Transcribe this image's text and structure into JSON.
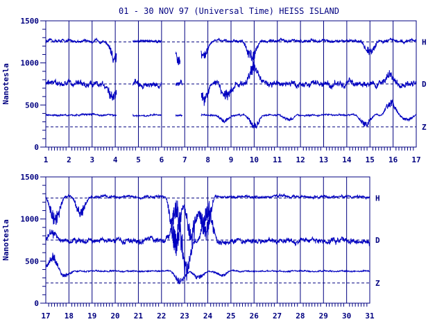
{
  "title": "01 - 30 NOV 97 (Universal Time) HEISS ISLAND",
  "colors": {
    "ink": "#000080",
    "trace": "#0000c0",
    "background": "#ffffff"
  },
  "chart_data": [
    {
      "type": "line",
      "ylabel": "Nanotesla",
      "ylim": [
        0,
        1500
      ],
      "yticks": [
        0,
        500,
        1000,
        1500
      ],
      "xlim": [
        1,
        17
      ],
      "xticks": [
        "1",
        "2",
        "3",
        "4",
        "5",
        "6",
        "7",
        "8",
        "9",
        "10",
        "11",
        "12",
        "13",
        "14",
        "15",
        "16",
        "17"
      ],
      "baselines": [
        {
          "component": "H",
          "value": 1250
        },
        {
          "component": "D",
          "value": 750
        },
        {
          "component": "Z",
          "value": 240
        }
      ],
      "series": [
        {
          "name": "H",
          "base": 1260,
          "noise": 22,
          "gaps": [
            [
              4.05,
              4.75
            ],
            [
              6.0,
              6.6
            ],
            [
              6.8,
              7.7
            ]
          ],
          "dips": [
            [
              4.0,
              250
            ],
            [
              6.8,
              280
            ],
            [
              7.8,
              180
            ],
            [
              9.9,
              200
            ],
            [
              15.0,
              140
            ]
          ]
        },
        {
          "name": "D",
          "base": 750,
          "noise": 45,
          "gaps": [
            [
              4.05,
              4.75
            ],
            [
              6.0,
              6.6
            ],
            [
              6.9,
              7.7
            ]
          ],
          "dips": [
            [
              3.9,
              180
            ],
            [
              7.8,
              200
            ],
            [
              8.8,
              150
            ],
            [
              10.0,
              -200
            ],
            [
              15.8,
              -120
            ]
          ]
        },
        {
          "name": "Z",
          "base": 380,
          "noise": 12,
          "gaps": [
            [
              4.05,
              4.75
            ],
            [
              6.0,
              6.6
            ],
            [
              6.9,
              7.7
            ]
          ],
          "dips": [
            [
              2.9,
              -10
            ],
            [
              8.7,
              70
            ],
            [
              10.0,
              150
            ],
            [
              11.5,
              60
            ],
            [
              14.8,
              120
            ],
            [
              15.9,
              -150
            ],
            [
              16.6,
              60
            ]
          ]
        }
      ]
    },
    {
      "type": "line",
      "ylabel": "Nanotesla",
      "ylim": [
        0,
        1500
      ],
      "yticks": [
        0,
        500,
        1000,
        1500
      ],
      "xlim": [
        17,
        31
      ],
      "xticks": [
        "17",
        "18",
        "19",
        "20",
        "21",
        "22",
        "23",
        "24",
        "25",
        "26",
        "27",
        "28",
        "29",
        "30",
        "31"
      ],
      "baselines": [
        {
          "component": "H",
          "value": 1250
        },
        {
          "component": "D",
          "value": 750
        },
        {
          "component": "Z",
          "value": 240
        }
      ],
      "series": [
        {
          "name": "H",
          "base": 1265,
          "noise": 18,
          "gaps": [],
          "dips": [
            [
              17.4,
              300
            ],
            [
              18.5,
              200
            ],
            [
              22.6,
              600
            ],
            [
              23.3,
              500
            ],
            [
              23.9,
              450
            ]
          ]
        },
        {
          "name": "D",
          "base": 740,
          "noise": 40,
          "gaps": [],
          "dips": [
            [
              17.3,
              -120
            ],
            [
              22.7,
              -500
            ],
            [
              23.0,
              450
            ],
            [
              24.0,
              -400
            ]
          ]
        },
        {
          "name": "Z",
          "base": 380,
          "noise": 10,
          "gaps": [],
          "dips": [
            [
              17.3,
              -180
            ],
            [
              17.8,
              60
            ],
            [
              22.8,
              130
            ],
            [
              23.6,
              80
            ],
            [
              24.6,
              50
            ]
          ]
        }
      ]
    }
  ]
}
